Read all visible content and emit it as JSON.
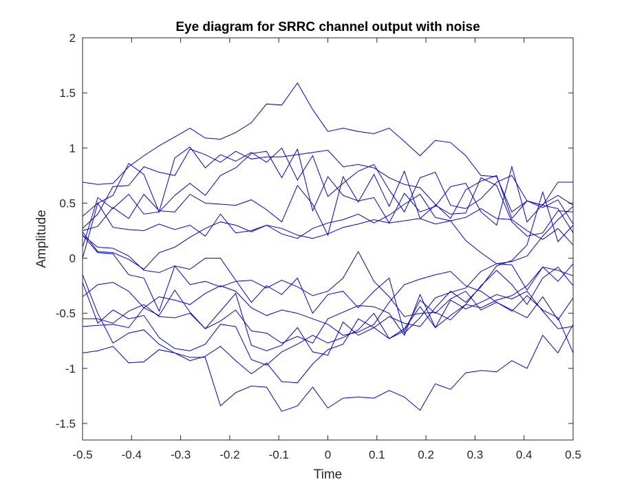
{
  "chart_data": {
    "type": "line",
    "title": "Eye diagram for SRRC channel output with noise",
    "xlabel": "Time",
    "ylabel": "Amplitude",
    "xlim": [
      -0.5,
      0.5
    ],
    "ylim": [
      -1.65,
      2
    ],
    "x_ticks": [
      -0.5,
      -0.4,
      -0.3,
      -0.2,
      -0.1,
      0,
      0.1,
      0.2,
      0.3,
      0.4,
      0.5
    ],
    "x_tick_labels": [
      "-0.5",
      "-0.4",
      "-0.3",
      "-0.2",
      "-0.1",
      "0",
      "0.1",
      "0.2",
      "0.3",
      "0.4",
      "0.5"
    ],
    "y_ticks": [
      -1.5,
      -1,
      -0.5,
      0,
      0.5,
      1,
      1.5,
      2
    ],
    "y_tick_labels": [
      "-1.5",
      "-1",
      "-0.5",
      "0",
      "0.5",
      "1",
      "1.5",
      "2"
    ],
    "grid": false,
    "box": true,
    "line_color": "#0000d8",
    "x": [
      -0.5,
      -0.469,
      -0.438,
      -0.406,
      -0.375,
      -0.344,
      -0.312,
      -0.281,
      -0.25,
      -0.219,
      -0.188,
      -0.156,
      -0.125,
      -0.094,
      -0.062,
      -0.031,
      0,
      0.031,
      0.062,
      0.094,
      0.125,
      0.156,
      0.188,
      0.219,
      0.25,
      0.281,
      0.312,
      0.344,
      0.375,
      0.406,
      0.438,
      0.469,
      0.5
    ],
    "series": [
      {
        "values": [
          0.69,
          0.67,
          0.68,
          0.83,
          0.93,
          1.02,
          1.1,
          1.18,
          1.09,
          1.08,
          1.14,
          1.23,
          1.4,
          1.39,
          1.59,
          1.35,
          1.15,
          1.18,
          1.15,
          1.13,
          1.18,
          1.06,
          0.93,
          1.07,
          1.05,
          0.93,
          0.75,
          0.74,
          0.42,
          0.52,
          0.48,
          0.69,
          0.69
        ]
      },
      {
        "values": [
          0.27,
          0.4,
          0.65,
          0.66,
          0.83,
          0.78,
          0.75,
          0.99,
          0.94,
          0.87,
          0.97,
          0.9,
          0.92,
          0.92,
          0.94,
          0.96,
          0.98,
          0.83,
          0.85,
          0.82,
          0.73,
          0.67,
          0.64,
          0.49,
          0.36,
          0.62,
          0.7,
          0.75,
          0.36,
          0.52,
          0.46,
          0.53,
          0.31
        ]
      },
      {
        "values": [
          0.38,
          0.5,
          0.57,
          0.86,
          0.76,
          0.42,
          0.91,
          1.01,
          0.82,
          0.94,
          0.88,
          0.96,
          0.87,
          1.0,
          0.71,
          0.93,
          0.56,
          0.68,
          0.79,
          0.85,
          0.62,
          0.42,
          0.73,
          0.78,
          0.48,
          0.45,
          0.54,
          0.69,
          0.75,
          0.52,
          0.48,
          0.45,
          0.23
        ]
      },
      {
        "values": [
          0.1,
          0.55,
          0.45,
          0.58,
          0.4,
          0.42,
          0.57,
          0.68,
          0.57,
          0.75,
          0.82,
          0.95,
          0.97,
          0.73,
          0.99,
          0.43,
          0.74,
          0.57,
          0.52,
          0.55,
          0.32,
          0.59,
          0.42,
          0.47,
          0.65,
          0.68,
          0.42,
          0.3,
          0.83,
          0.33,
          0.49,
          0.57,
          0.48
        ]
      },
      {
        "values": [
          0.25,
          0.29,
          0.46,
          0.36,
          0.58,
          0.43,
          0.42,
          0.58,
          0.5,
          0.49,
          0.48,
          0.53,
          0.44,
          0.33,
          0.66,
          0.49,
          0.21,
          0.74,
          0.51,
          0.76,
          0.47,
          0.79,
          0.36,
          0.48,
          0.4,
          0.41,
          0.73,
          0.66,
          0.33,
          0.2,
          0.23,
          0.43,
          0.42
        ]
      },
      {
        "values": [
          0.0,
          0.5,
          0.28,
          0.26,
          0.25,
          0.31,
          0.26,
          0.3,
          0.2,
          0.4,
          0.23,
          0.25,
          0.3,
          0.27,
          0.21,
          0.18,
          0.22,
          0.28,
          0.31,
          0.35,
          0.32,
          0.34,
          0.36,
          0.31,
          0.34,
          0.37,
          0.45,
          0.36,
          0.35,
          0.25,
          0.17,
          0.27,
          0.12
        ]
      },
      {
        "values": [
          0.24,
          0.06,
          0.05,
          -0.01,
          -0.1,
          0.05,
          0.1,
          0.19,
          0.27,
          0.33,
          0.3,
          0.24,
          0.3,
          0.22,
          0.18,
          0.27,
          0.32,
          0.35,
          0.4,
          0.32,
          0.39,
          0.49,
          0.58,
          0.37,
          0.34,
          0.16,
          0.05,
          -0.05,
          -0.03,
          0.02,
          0.2,
          0.35,
          0.47
        ]
      },
      {
        "values": [
          0.21,
          0.1,
          0.09,
          0.02,
          -0.11,
          -0.13,
          -0.07,
          -0.24,
          -0.21,
          -0.26,
          -0.21,
          -0.2,
          -0.27,
          -0.2,
          -0.26,
          -0.34,
          -0.3,
          -0.18,
          0.06,
          -0.21,
          -0.35,
          -0.53,
          -0.5,
          -0.49,
          -0.56,
          -0.42,
          -0.25,
          -0.11,
          -0.24,
          -0.42,
          -0.18,
          -0.08,
          -0.25
        ]
      },
      {
        "values": [
          0.21,
          0.05,
          0.04,
          -0.15,
          -0.18,
          -0.48,
          -0.07,
          -0.1,
          0.0,
          0.0,
          -0.2,
          -0.4,
          -0.25,
          -0.33,
          -0.18,
          -0.5,
          -0.33,
          -0.3,
          -0.45,
          -0.3,
          -0.18,
          -0.68,
          -0.54,
          -0.36,
          -0.31,
          -0.27,
          -0.12,
          -0.05,
          -0.06,
          -0.29,
          -0.08,
          -0.11,
          -0.16
        ]
      },
      {
        "values": [
          -0.35,
          -0.24,
          -0.22,
          -0.3,
          -0.45,
          -0.35,
          -0.38,
          -0.42,
          -0.32,
          -0.25,
          -0.3,
          -0.45,
          -0.52,
          -0.47,
          -0.5,
          -0.55,
          -0.6,
          -0.7,
          -0.67,
          -0.6,
          -0.4,
          -0.24,
          -0.19,
          -0.15,
          -0.12,
          -0.25,
          -0.3,
          -0.4,
          -0.47,
          -0.54,
          -0.35,
          -0.56,
          -0.36
        ]
      },
      {
        "values": [
          -0.55,
          -0.55,
          -0.59,
          -0.48,
          -0.42,
          -0.53,
          -0.54,
          -0.5,
          -0.64,
          -0.57,
          -0.47,
          -0.66,
          -0.68,
          -0.77,
          -0.71,
          -0.77,
          -0.55,
          -0.49,
          -0.43,
          -0.44,
          -0.5,
          -0.7,
          -0.33,
          -0.63,
          -0.38,
          -0.46,
          -0.4,
          -0.33,
          -0.37,
          -0.3,
          -0.48,
          -0.64,
          -0.62
        ]
      },
      {
        "values": [
          -0.62,
          -0.61,
          -0.6,
          -0.63,
          -0.45,
          -0.52,
          -0.29,
          -0.49,
          -0.64,
          -0.48,
          -0.32,
          -0.79,
          -0.84,
          -0.79,
          -0.63,
          -0.85,
          -0.88,
          -0.58,
          -0.7,
          -0.63,
          -0.73,
          -0.66,
          -0.38,
          -0.5,
          -0.37,
          -0.3,
          -0.47,
          -0.4,
          -0.48,
          -0.34,
          -0.47,
          -0.54,
          -0.86
        ]
      },
      {
        "values": [
          -0.22,
          -0.59,
          -0.47,
          -0.55,
          -0.52,
          -0.72,
          -0.82,
          -0.84,
          -0.78,
          -0.6,
          -0.62,
          -0.92,
          -0.97,
          -0.85,
          -0.78,
          -0.7,
          -0.77,
          -0.72,
          -0.65,
          -0.5,
          -0.73,
          -0.64,
          -0.44,
          -0.63,
          -0.52,
          -0.42,
          -0.45,
          -0.38,
          -0.34,
          -0.25,
          -0.08,
          -0.21,
          -0.05
        ]
      },
      {
        "values": [
          -0.15,
          -0.5,
          -0.77,
          -0.68,
          -0.65,
          -0.78,
          -0.86,
          -0.93,
          -0.89,
          -0.8,
          -0.93,
          -1.05,
          -0.95,
          -1.12,
          -1.13,
          -0.96,
          -0.83,
          -0.78,
          -0.55,
          -0.63,
          -0.53,
          -0.59,
          -0.62,
          -0.45,
          -0.3,
          -0.4,
          -0.26,
          -0.07,
          -0.02,
          0.12,
          0.6,
          0.15,
          0.3
        ]
      },
      {
        "values": [
          -0.86,
          -0.84,
          -0.8,
          -0.95,
          -0.94,
          -0.83,
          -0.86,
          -0.9,
          -0.9,
          -1.34,
          -1.22,
          -1.16,
          -1.17,
          -1.39,
          -1.34,
          -1.17,
          -1.36,
          -1.27,
          -1.26,
          -1.27,
          -1.2,
          -1.26,
          -1.38,
          -1.14,
          -1.19,
          -1.04,
          -1.02,
          -1.03,
          -0.93,
          -1.0,
          -0.7,
          -0.86,
          -0.6
        ]
      }
    ]
  }
}
